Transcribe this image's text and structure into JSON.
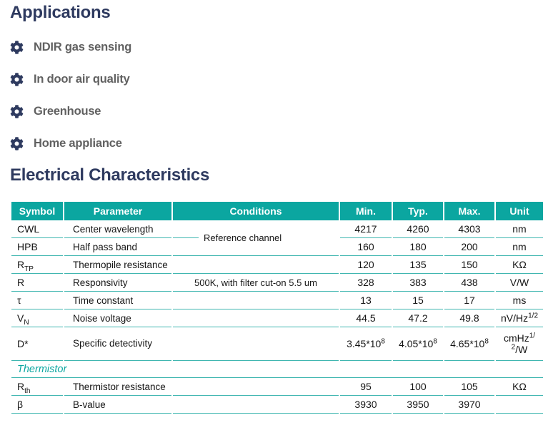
{
  "colors": {
    "teal": "#0ba6a0",
    "navy": "#2e3a5f",
    "label_gray": "#616161",
    "border": "#3fb6b0"
  },
  "icons": {
    "application_bullet": "gear-icon"
  },
  "applications": {
    "title": "Applications",
    "items": [
      "NDIR gas sensing",
      "In door air quality",
      "Greenhouse",
      "Home appliance"
    ]
  },
  "electrical": {
    "title": "Electrical Characteristics",
    "table": {
      "columns": [
        "Symbol",
        "Parameter",
        "Conditions",
        "Min.",
        "Typ.",
        "Max.",
        "Unit"
      ],
      "rows": [
        {
          "symbol": "CWL",
          "parameter": "Center wavelength",
          "conditions": {
            "text": "Reference channel",
            "rowspan": 2
          },
          "min": "4217",
          "typ": "4260",
          "max": "4303",
          "unit": "nm"
        },
        {
          "symbol": "HPB",
          "parameter": "Half pass band",
          "conditions": "merged",
          "min": "160",
          "typ": "180",
          "max": "200",
          "unit": "nm"
        },
        {
          "symbol": [
            {
              "t": "R"
            },
            {
              "t": "TP",
              "style": "sub"
            }
          ],
          "parameter": "Thermopile resistance",
          "conditions": "",
          "min": "120",
          "typ": "135",
          "max": "150",
          "unit": "KΩ"
        },
        {
          "symbol": "R",
          "parameter": "Responsivity",
          "conditions": "500K, with filter cut-on 5.5 um",
          "min": "328",
          "typ": "383",
          "max": "438",
          "unit": "V/W"
        },
        {
          "symbol": "τ",
          "parameter": "Time constant",
          "conditions": "",
          "min": "13",
          "typ": "15",
          "max": "17",
          "unit": "ms"
        },
        {
          "symbol": [
            {
              "t": "V"
            },
            {
              "t": "N",
              "style": "sub"
            }
          ],
          "parameter": "Noise voltage",
          "conditions": "",
          "min": "44.5",
          "typ": "47.2",
          "max": "49.8",
          "unit": [
            {
              "t": "nV/Hz"
            },
            {
              "t": "1/2",
              "style": "sup"
            }
          ]
        },
        {
          "symbol": "D*",
          "parameter": "Specific detectivity",
          "conditions": "",
          "min": [
            {
              "t": "3.45*10"
            },
            {
              "t": "8",
              "style": "sup"
            }
          ],
          "typ": [
            {
              "t": "4.05*10"
            },
            {
              "t": "8",
              "style": "sup"
            }
          ],
          "max": [
            {
              "t": "4.65*10"
            },
            {
              "t": "8",
              "style": "sup"
            }
          ],
          "unit": [
            {
              "t": "cmHz"
            },
            {
              "t": "1/",
              "style": "sup"
            },
            {
              "br": true
            },
            {
              "t": "2",
              "style": "sup"
            },
            {
              "t": "/W"
            }
          ]
        },
        {
          "section": "Thermistor"
        },
        {
          "symbol": [
            {
              "t": "R"
            },
            {
              "t": "th",
              "style": "sub"
            }
          ],
          "parameter": "Thermistor resistance",
          "conditions": "",
          "min": "95",
          "typ": "100",
          "max": "105",
          "unit": "KΩ"
        },
        {
          "symbol": "β",
          "parameter": "B-value",
          "conditions": "",
          "min": "3930",
          "typ": "3950",
          "max": "3970",
          "unit": ""
        }
      ]
    }
  }
}
